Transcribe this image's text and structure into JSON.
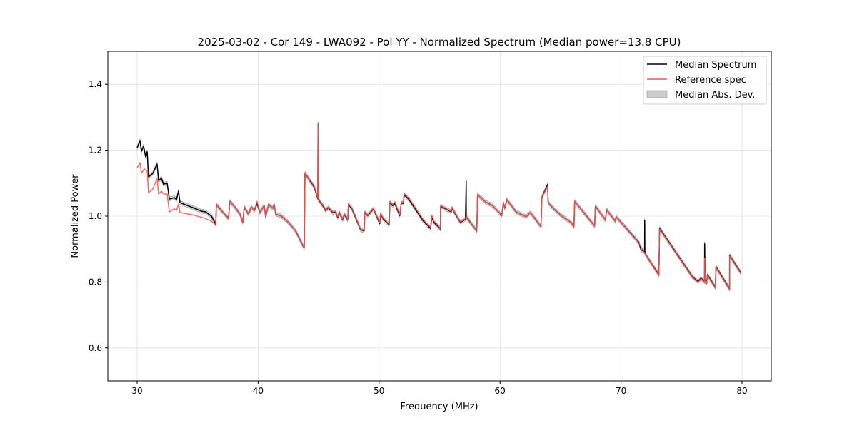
{
  "chart_data": {
    "type": "line",
    "title": "2025-03-02 - Cor 149 - LWA092 - Pol YY - Normalized Spectrum (Median power=13.8 CPU)",
    "xlabel": "Frequency (MHz)",
    "ylabel": "Normalized Power",
    "xlim": [
      27.58,
      82.42
    ],
    "ylim": [
      0.5,
      1.5
    ],
    "xticks": [
      30,
      40,
      50,
      60,
      70,
      80
    ],
    "yticks": [
      0.6,
      0.8,
      1.0,
      1.2,
      1.4
    ],
    "xtick_labels": [
      "30",
      "40",
      "50",
      "60",
      "70",
      "80"
    ],
    "ytick_labels": [
      "0.6",
      "0.8",
      "1.0",
      "1.2",
      "1.4"
    ],
    "grid": true,
    "legend_position": "top-right",
    "legend": [
      "Median Spectrum",
      "Reference spec",
      "Median Abs. Dev."
    ],
    "colors": {
      "median": "#000000",
      "reference": "#ff5555",
      "mad": "#999999"
    },
    "mad_halfwidth": 0.006,
    "series": [
      {
        "name": "Median Spectrum",
        "points": [
          [
            30.0,
            1.208
          ],
          [
            30.24,
            1.229
          ],
          [
            30.35,
            1.197
          ],
          [
            30.53,
            1.212
          ],
          [
            30.71,
            1.18
          ],
          [
            30.83,
            1.195
          ],
          [
            30.94,
            1.119
          ],
          [
            31.3,
            1.13
          ],
          [
            31.65,
            1.158
          ],
          [
            31.77,
            1.108
          ],
          [
            32.01,
            1.115
          ],
          [
            32.18,
            1.097
          ],
          [
            32.48,
            1.1
          ],
          [
            32.66,
            1.052
          ],
          [
            33.07,
            1.056
          ],
          [
            33.25,
            1.05
          ],
          [
            33.42,
            1.076
          ],
          [
            33.54,
            1.041
          ],
          [
            34.6,
            1.026
          ],
          [
            35.31,
            1.015
          ],
          [
            35.66,
            1.013
          ],
          [
            36.14,
            1.0
          ],
          [
            36.49,
            0.976
          ],
          [
            36.55,
            1.035
          ],
          [
            36.96,
            1.017
          ],
          [
            37.32,
            1.002
          ],
          [
            37.55,
            0.994
          ],
          [
            37.67,
            1.045
          ],
          [
            38.14,
            1.024
          ],
          [
            38.5,
            1.006
          ],
          [
            38.73,
            0.981
          ],
          [
            38.85,
            1.028
          ],
          [
            39.2,
            1.006
          ],
          [
            39.44,
            1.028
          ],
          [
            39.68,
            1.017
          ],
          [
            39.91,
            1.039
          ],
          [
            40.15,
            1.011
          ],
          [
            40.5,
            1.032
          ],
          [
            40.62,
            0.998
          ],
          [
            40.86,
            1.035
          ],
          [
            41.21,
            1.024
          ],
          [
            41.33,
            1.035
          ],
          [
            41.45,
            1.006
          ],
          [
            41.92,
            1.0
          ],
          [
            42.51,
            0.981
          ],
          [
            43.1,
            0.955
          ],
          [
            43.81,
            0.903
          ],
          [
            43.87,
            1.13
          ],
          [
            44.63,
            1.089
          ],
          [
            44.93,
            1.054
          ],
          [
            44.95,
            1.281
          ],
          [
            44.99,
            1.05
          ],
          [
            45.34,
            1.032
          ],
          [
            45.58,
            1.017
          ],
          [
            45.81,
            1.026
          ],
          [
            46.17,
            1.011
          ],
          [
            46.4,
            1.013
          ],
          [
            46.58,
            0.996
          ],
          [
            46.7,
            1.011
          ],
          [
            46.99,
            0.989
          ],
          [
            47.11,
            1.006
          ],
          [
            47.41,
            0.989
          ],
          [
            47.46,
            1.035
          ],
          [
            47.76,
            1.022
          ],
          [
            48.47,
            0.959
          ],
          [
            48.76,
            0.955
          ],
          [
            48.82,
            1.011
          ],
          [
            49.06,
            1.002
          ],
          [
            49.53,
            1.022
          ],
          [
            50.06,
            0.978
          ],
          [
            50.12,
            1.006
          ],
          [
            50.36,
            0.991
          ],
          [
            50.83,
            0.974
          ],
          [
            50.89,
            1.041
          ],
          [
            51.12,
            1.032
          ],
          [
            51.3,
            1.039
          ],
          [
            51.71,
            1.002
          ],
          [
            51.83,
            1.039
          ],
          [
            52.01,
            1.039
          ],
          [
            52.07,
            1.065
          ],
          [
            52.48,
            1.05
          ],
          [
            53.66,
            0.985
          ],
          [
            54.07,
            0.97
          ],
          [
            54.25,
            0.963
          ],
          [
            54.37,
            0.998
          ],
          [
            54.54,
            0.981
          ],
          [
            55.08,
            0.961
          ],
          [
            55.09,
            1.03
          ],
          [
            55.96,
            1.013
          ],
          [
            56.02,
            1.024
          ],
          [
            56.73,
            0.981
          ],
          [
            57.14,
            0.991
          ],
          [
            57.2,
            1.106
          ],
          [
            57.21,
            0.998
          ],
          [
            58.08,
            0.955
          ],
          [
            58.14,
            1.065
          ],
          [
            58.79,
            1.043
          ],
          [
            59.38,
            1.032
          ],
          [
            60.15,
            1.002
          ],
          [
            60.27,
            1.041
          ],
          [
            60.39,
            1.024
          ],
          [
            60.56,
            1.05
          ],
          [
            61.33,
            1.013
          ],
          [
            62.16,
            0.998
          ],
          [
            62.51,
            1.011
          ],
          [
            63.39,
            0.968
          ],
          [
            63.45,
            1.056
          ],
          [
            63.93,
            1.095
          ],
          [
            63.98,
            1.041
          ],
          [
            64.4,
            1.024
          ],
          [
            65.11,
            1.0
          ],
          [
            65.87,
            0.981
          ],
          [
            66.11,
            0.968
          ],
          [
            66.17,
            1.045
          ],
          [
            67.82,
            0.97
          ],
          [
            67.88,
            1.03
          ],
          [
            68.7,
            0.989
          ],
          [
            68.82,
            1.019
          ],
          [
            69.53,
            0.985
          ],
          [
            69.59,
            0.998
          ],
          [
            71.48,
            0.92
          ],
          [
            71.65,
            0.898
          ],
          [
            71.95,
            0.892
          ],
          [
            71.96,
            0.987
          ],
          [
            71.97,
            0.887
          ],
          [
            73.13,
            0.822
          ],
          [
            73.19,
            0.963
          ],
          [
            75.9,
            0.816
          ],
          [
            76.37,
            0.801
          ],
          [
            76.61,
            0.812
          ],
          [
            76.9,
            0.801
          ],
          [
            76.91,
            0.916
          ],
          [
            76.96,
            0.801
          ],
          [
            77.08,
            0.796
          ],
          [
            77.14,
            0.822
          ],
          [
            77.79,
            0.784
          ],
          [
            77.85,
            0.846
          ],
          [
            78.97,
            0.779
          ],
          [
            78.98,
            0.881
          ],
          [
            79.92,
            0.827
          ]
        ]
      },
      {
        "name": "Reference spec",
        "points": [
          [
            30.0,
            1.147
          ],
          [
            30.24,
            1.162
          ],
          [
            30.35,
            1.13
          ],
          [
            30.59,
            1.143
          ],
          [
            30.83,
            1.136
          ],
          [
            30.94,
            1.071
          ],
          [
            31.3,
            1.082
          ],
          [
            31.65,
            1.115
          ],
          [
            31.77,
            1.067
          ],
          [
            32.01,
            1.076
          ],
          [
            32.18,
            1.067
          ],
          [
            32.48,
            1.067
          ],
          [
            32.66,
            1.013
          ],
          [
            33.07,
            1.022
          ],
          [
            33.25,
            1.017
          ],
          [
            33.42,
            1.037
          ],
          [
            33.54,
            1.011
          ],
          [
            34.6,
            1.004
          ],
          [
            35.54,
            0.994
          ],
          [
            36.14,
            0.985
          ],
          [
            36.49,
            0.972
          ],
          [
            36.55,
            1.035
          ],
          [
            36.96,
            1.017
          ],
          [
            37.32,
            1.002
          ],
          [
            37.55,
            0.992
          ],
          [
            37.67,
            1.045
          ],
          [
            38.14,
            1.024
          ],
          [
            38.5,
            1.006
          ],
          [
            38.73,
            0.981
          ],
          [
            38.85,
            1.028
          ],
          [
            39.2,
            1.006
          ],
          [
            39.44,
            1.028
          ],
          [
            39.68,
            1.017
          ],
          [
            39.91,
            1.045
          ],
          [
            40.15,
            1.011
          ],
          [
            40.5,
            1.032
          ],
          [
            40.62,
            0.998
          ],
          [
            40.86,
            1.035
          ],
          [
            41.21,
            1.024
          ],
          [
            41.33,
            1.035
          ],
          [
            41.45,
            1.006
          ],
          [
            41.92,
            1.0
          ],
          [
            42.51,
            0.981
          ],
          [
            43.1,
            0.955
          ],
          [
            43.81,
            0.903
          ],
          [
            43.87,
            1.13
          ],
          [
            44.63,
            1.092
          ],
          [
            44.93,
            1.056
          ],
          [
            44.95,
            1.281
          ],
          [
            44.99,
            1.052
          ],
          [
            45.34,
            1.034
          ],
          [
            45.58,
            1.019
          ],
          [
            45.81,
            1.028
          ],
          [
            46.17,
            1.013
          ],
          [
            46.4,
            1.015
          ],
          [
            46.58,
            0.998
          ],
          [
            46.7,
            1.013
          ],
          [
            46.99,
            0.991
          ],
          [
            47.11,
            1.008
          ],
          [
            47.41,
            0.991
          ],
          [
            47.46,
            1.037
          ],
          [
            47.76,
            1.024
          ],
          [
            48.47,
            0.961
          ],
          [
            48.76,
            0.957
          ],
          [
            48.82,
            1.013
          ],
          [
            49.06,
            1.004
          ],
          [
            49.53,
            1.024
          ],
          [
            50.06,
            0.98
          ],
          [
            50.12,
            1.008
          ],
          [
            50.36,
            0.993
          ],
          [
            50.83,
            0.976
          ],
          [
            50.89,
            1.045
          ],
          [
            51.12,
            1.036
          ],
          [
            51.3,
            1.043
          ],
          [
            51.71,
            1.006
          ],
          [
            51.83,
            1.043
          ],
          [
            52.01,
            1.043
          ],
          [
            52.07,
            1.069
          ],
          [
            52.48,
            1.054
          ],
          [
            53.66,
            0.989
          ],
          [
            54.07,
            0.974
          ],
          [
            54.25,
            0.967
          ],
          [
            54.37,
            1.002
          ],
          [
            54.54,
            0.985
          ],
          [
            55.08,
            0.963
          ],
          [
            55.09,
            1.032
          ],
          [
            55.96,
            1.015
          ],
          [
            56.02,
            1.026
          ],
          [
            56.73,
            0.983
          ],
          [
            57.14,
            0.993
          ],
          [
            57.2,
            1.0
          ],
          [
            58.08,
            0.955
          ],
          [
            58.14,
            1.065
          ],
          [
            58.79,
            1.043
          ],
          [
            59.38,
            1.032
          ],
          [
            60.15,
            1.002
          ],
          [
            60.27,
            1.041
          ],
          [
            60.39,
            1.024
          ],
          [
            60.56,
            1.05
          ],
          [
            61.33,
            1.013
          ],
          [
            62.16,
            0.998
          ],
          [
            62.51,
            1.011
          ],
          [
            63.39,
            0.968
          ],
          [
            63.45,
            1.056
          ],
          [
            63.93,
            1.09
          ],
          [
            63.98,
            1.041
          ],
          [
            64.4,
            1.024
          ],
          [
            65.11,
            1.0
          ],
          [
            65.87,
            0.981
          ],
          [
            66.11,
            0.968
          ],
          [
            66.17,
            1.045
          ],
          [
            67.82,
            0.97
          ],
          [
            67.88,
            1.03
          ],
          [
            68.7,
            0.989
          ],
          [
            68.82,
            1.019
          ],
          [
            69.53,
            0.985
          ],
          [
            69.59,
            0.998
          ],
          [
            71.48,
            0.918
          ],
          [
            71.95,
            0.888
          ],
          [
            73.13,
            0.82
          ],
          [
            73.19,
            0.961
          ],
          [
            75.9,
            0.814
          ],
          [
            76.37,
            0.799
          ],
          [
            76.61,
            0.81
          ],
          [
            76.9,
            0.799
          ],
          [
            76.91,
            0.873
          ],
          [
            76.96,
            0.799
          ],
          [
            77.08,
            0.794
          ],
          [
            77.14,
            0.82
          ],
          [
            77.79,
            0.782
          ],
          [
            77.85,
            0.844
          ],
          [
            78.97,
            0.777
          ],
          [
            78.98,
            0.879
          ],
          [
            79.92,
            0.825
          ]
        ]
      }
    ]
  }
}
